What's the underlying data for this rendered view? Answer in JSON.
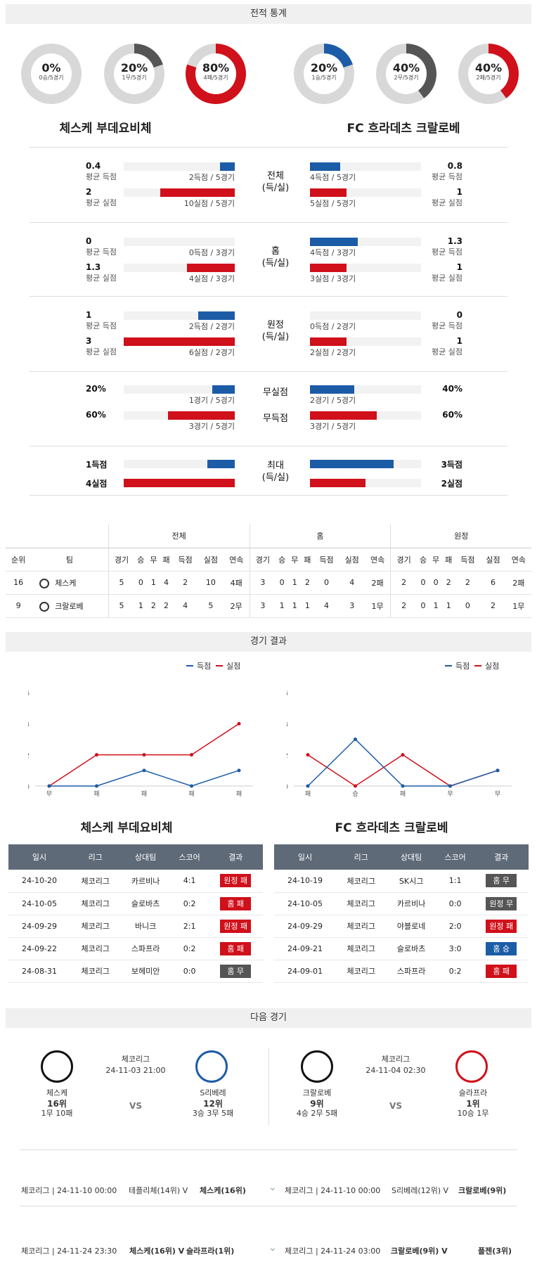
{
  "sections": {
    "record": "전적 통계",
    "results": "경기 결과",
    "next": "다음 경기"
  },
  "donuts": [
    {
      "pct": "0%",
      "sub": "0승/5경기",
      "value": 0,
      "color": "#555"
    },
    {
      "pct": "20%",
      "sub": "1무/5경기",
      "value": 0.2,
      "color": "#555"
    },
    {
      "pct": "80%",
      "sub": "4패/5경기",
      "value": 0.8,
      "color": "#d0101a"
    },
    {
      "pct": "20%",
      "sub": "1승/5경기",
      "value": 0.2,
      "color": "#1c5ca6"
    },
    {
      "pct": "40%",
      "sub": "2무/5경기",
      "value": 0.4,
      "color": "#555"
    },
    {
      "pct": "40%",
      "sub": "2패/5경기",
      "value": 0.4,
      "color": "#d0101a"
    }
  ],
  "teams": {
    "home": "체스케 부데요비체",
    "away": "FC 흐라데츠 크랄로베",
    "home_short": "체스케",
    "away_short": "크랄로베"
  },
  "stats": [
    {
      "center": [
        "전체",
        "(득/실)"
      ],
      "lv1": "0.4",
      "ll1": "평균 득점",
      "lc1": "2득점 / 5경기",
      "lf1": 0.13,
      "lv2": "2",
      "ll2": "평균 실점",
      "lc2": "10실점 / 5경기",
      "lf2": 0.67,
      "rv1": "0.8",
      "rl1": "평균 득점",
      "rc1": "4득점 / 5경기",
      "rf1": 0.27,
      "rv2": "1",
      "rl2": "평균 실점",
      "rc2": "5실점 / 5경기",
      "rf2": 0.33
    },
    {
      "center": [
        "홈",
        "(득/실)"
      ],
      "lv1": "0",
      "ll1": "평균 득점",
      "lc1": "0득점 / 3경기",
      "lf1": 0,
      "lv2": "1.3",
      "ll2": "평균 실점",
      "lc2": "4실점 / 3경기",
      "lf2": 0.43,
      "rv1": "1.3",
      "rl1": "평균 득점",
      "rc1": "4득점 / 3경기",
      "rf1": 0.43,
      "rv2": "1",
      "rl2": "평균 실점",
      "rc2": "3실점 / 3경기",
      "rf2": 0.33
    },
    {
      "center": [
        "원정",
        "(득/실)"
      ],
      "lv1": "1",
      "ll1": "평균 득점",
      "lc1": "2득점 / 2경기",
      "lf1": 0.33,
      "lv2": "3",
      "ll2": "평균 실점",
      "lc2": "6실점 / 2경기",
      "lf2": 1.0,
      "rv1": "0",
      "rl1": "평균 득점",
      "rc1": "0득점 / 2경기",
      "rf1": 0,
      "rv2": "1",
      "rl2": "평균 실점",
      "rc2": "2실점 / 2경기",
      "rf2": 0.33
    }
  ],
  "zero": {
    "c1": "무실점",
    "c2": "무득점",
    "lv1": "20%",
    "lc1": "1경기 / 5경기",
    "lf1": 0.2,
    "lv2": "60%",
    "lc2": "3경기 / 5경기",
    "lf2": 0.6,
    "rv1": "40%",
    "rc1": "2경기 / 5경기",
    "rf1": 0.4,
    "rv2": "60%",
    "rc2": "3경기 / 5경기",
    "rf2": 0.6
  },
  "max": {
    "center": [
      "최대",
      "(득/실)"
    ],
    "lv1": "1득점",
    "lf1": 0.25,
    "lv2": "4실점",
    "lf2": 1.0,
    "rv1": "3득점",
    "rf1": 0.75,
    "rv2": "2실점",
    "rf2": 0.5
  },
  "standings": {
    "groups": [
      "전체",
      "홈",
      "원정"
    ],
    "head": [
      "순위",
      "팀",
      "경기",
      "승",
      "무",
      "패",
      "득점",
      "실점",
      "연속",
      "경기",
      "승",
      "무",
      "패",
      "득점",
      "실점",
      "연속",
      "경기",
      "승",
      "무",
      "패",
      "득점",
      "실점",
      "연속"
    ],
    "rows": [
      [
        "16",
        "체스케",
        "5",
        "0",
        "1",
        "4",
        "2",
        "10",
        "4패",
        "3",
        "0",
        "1",
        "2",
        "0",
        "4",
        "2패",
        "2",
        "0",
        "0",
        "2",
        "2",
        "6",
        "2패"
      ],
      [
        "9",
        "크랄로베",
        "5",
        "1",
        "2",
        "2",
        "4",
        "5",
        "2무",
        "3",
        "1",
        "1",
        "1",
        "4",
        "3",
        "1무",
        "2",
        "0",
        "1",
        "1",
        "0",
        "2",
        "1무"
      ]
    ]
  },
  "charts": [
    {
      "legend": [
        "득점",
        "실점"
      ],
      "x": [
        "무",
        "패",
        "패",
        "패",
        "패"
      ],
      "ticks": [
        "6",
        "4",
        "2",
        "0"
      ],
      "scored": [
        0,
        0,
        1,
        0,
        1
      ],
      "conceded": [
        0,
        2,
        2,
        2,
        4
      ]
    },
    {
      "legend": [
        "득점",
        "실점"
      ],
      "x": [
        "패",
        "승",
        "패",
        "무",
        "무"
      ],
      "ticks": [
        "6",
        "4",
        "2",
        "0"
      ],
      "scored": [
        0,
        3,
        0,
        0,
        1
      ],
      "conceded": [
        2,
        0,
        2,
        0,
        1
      ]
    }
  ],
  "results_head": [
    "일시",
    "리그",
    "상대팀",
    "스코어",
    "결과"
  ],
  "results": [
    [
      [
        "24-10-20",
        "체코리그",
        "카르비나",
        "4:1",
        "원정 패",
        "t-red"
      ],
      [
        "24-10-05",
        "체코리그",
        "슬로바츠",
        "0:2",
        "홈 패",
        "t-red"
      ],
      [
        "24-09-29",
        "체코리그",
        "바니크",
        "2:1",
        "원정 패",
        "t-red"
      ],
      [
        "24-09-22",
        "체코리그",
        "스파프라",
        "0:2",
        "홈 패",
        "t-red"
      ],
      [
        "24-08-31",
        "체코리그",
        "보헤미안",
        "0:0",
        "홈 무",
        "t-grey"
      ]
    ],
    [
      [
        "24-10-19",
        "체코리그",
        "SK시그",
        "1:1",
        "홈 무",
        "t-grey"
      ],
      [
        "24-10-05",
        "체코리그",
        "카르비나",
        "0:0",
        "원정 무",
        "t-grey"
      ],
      [
        "24-09-29",
        "체코리그",
        "야블로네",
        "2:0",
        "원정 패",
        "t-red"
      ],
      [
        "24-09-21",
        "체코리그",
        "슬로바츠",
        "3:0",
        "홈 승",
        "t-blue"
      ],
      [
        "24-09-01",
        "체코리그",
        "스파프라",
        "0:2",
        "홈 패",
        "t-red"
      ]
    ]
  ],
  "next": [
    {
      "league": "체코리그",
      "time": "24-11-03 21:00",
      "vs": "VS",
      "t1": "체스케",
      "r1": "16위",
      "s1": "1무 10패",
      "t2": "S리베레",
      "r2": "12위",
      "s2": "3승 3무 5패"
    },
    {
      "league": "체코리그",
      "time": "24-11-04 02:30",
      "vs": "VS",
      "t1": "크랄로베",
      "r1": "9위",
      "s1": "4승 2무 5패",
      "t2": "슬라프라",
      "r2": "1위",
      "s2": "10승 1무"
    }
  ],
  "upcoming": [
    {
      "left": "체코리그 | 24-11-10 00:00",
      "lm": "테플리체(14위) V",
      "lb": "체스케(16위)",
      "right": "체코리그 | 24-11-10 00:00",
      "rm": "S리베레(12위) V",
      "rb": "크랄로베(9위)"
    },
    {
      "left": "체코리그 | 24-11-24 23:30",
      "lm": "",
      "lb": "체스케(16위) V",
      "lb2": "슬라프라(1위)",
      "right": "체코리그 | 24-11-24 03:00",
      "rm": "",
      "rb": "크랄로베(9위) V",
      "rb2": "플젠(3위)"
    }
  ]
}
